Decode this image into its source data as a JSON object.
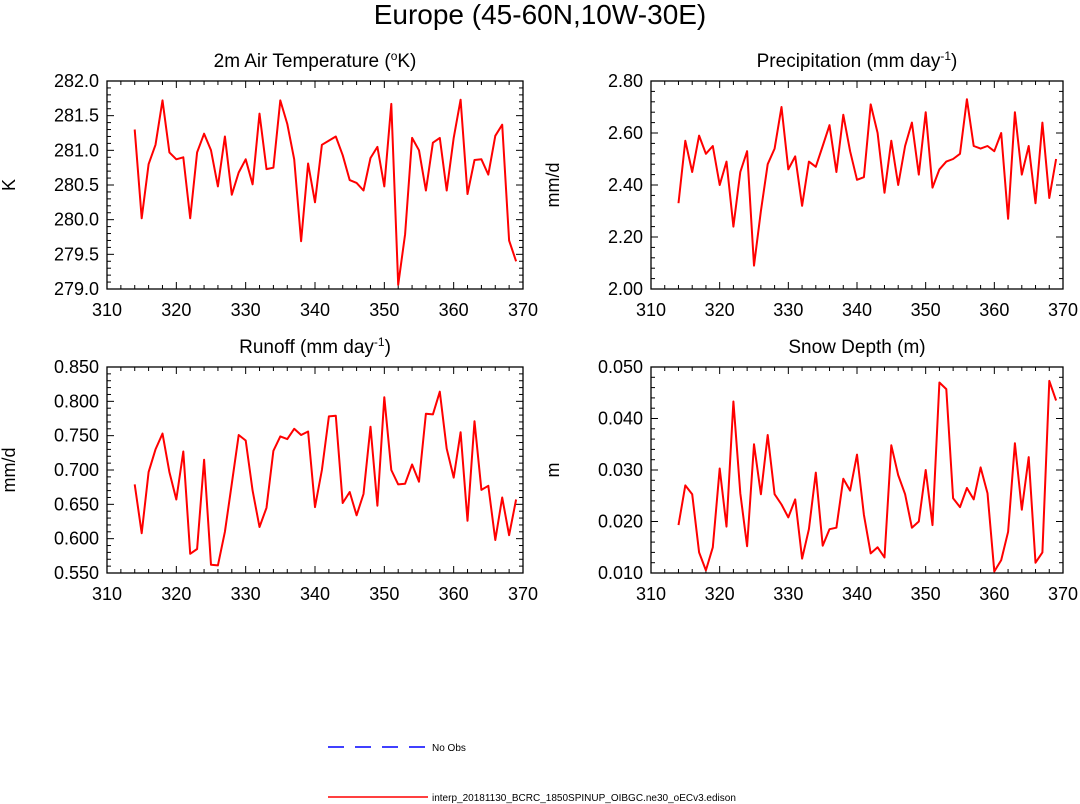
{
  "title": "Europe (45-60N,10W-30E)",
  "colors": {
    "model": "#ff0000",
    "obs": "#0000ff",
    "axis": "#000000"
  },
  "legend": {
    "position": "bottom-center",
    "obs_label": "No Obs",
    "model_label": "interp_20181130_BCRC_1850SPINUP_OIBGC.ne30_oECv3.edison"
  },
  "chart_data": [
    {
      "type": "line",
      "title_main": "2m Air Temperature (",
      "title_sup": "o",
      "title_end": "K)",
      "xlabel": "",
      "ylabel": "K",
      "xlim": [
        310,
        370
      ],
      "ylim": [
        279.0,
        282.0
      ],
      "xticks": [
        310,
        320,
        330,
        340,
        350,
        360,
        370
      ],
      "yticks": [
        279.0,
        279.5,
        280.0,
        280.5,
        281.0,
        281.5,
        282.0
      ],
      "ytick_labels": [
        "279.0",
        "279.5",
        "280.0",
        "280.5",
        "281.0",
        "281.5",
        "282.0"
      ],
      "x": [
        314,
        315,
        316,
        317,
        318,
        319,
        320,
        321,
        322,
        323,
        324,
        325,
        326,
        327,
        328,
        329,
        330,
        331,
        332,
        333,
        334,
        335,
        336,
        337,
        338,
        339,
        340,
        341,
        342,
        343,
        344,
        345,
        346,
        347,
        348,
        349,
        350,
        351,
        352,
        353,
        354,
        355,
        356,
        357,
        358,
        359,
        360,
        361,
        362,
        363,
        364,
        365,
        366,
        367,
        368,
        369
      ],
      "series": [
        {
          "name": "interp_20181130_BCRC_1850SPINUP_OIBGC.ne30_oECv3.edison",
          "values": [
            281.3,
            280.02,
            280.8,
            281.08,
            281.72,
            280.97,
            280.87,
            280.9,
            280.02,
            280.97,
            281.24,
            281.0,
            280.48,
            281.2,
            280.36,
            280.68,
            280.87,
            280.51,
            281.53,
            280.73,
            280.75,
            281.72,
            281.38,
            280.87,
            279.69,
            280.81,
            280.25,
            281.08,
            281.14,
            281.2,
            280.93,
            280.57,
            280.53,
            280.42,
            280.89,
            281.05,
            280.48,
            281.67,
            279.06,
            279.79,
            281.18,
            281.0,
            280.42,
            281.11,
            281.18,
            280.42,
            281.18,
            281.73,
            280.37,
            280.86,
            280.87,
            280.65,
            281.21,
            281.37,
            279.7,
            279.4
          ]
        }
      ]
    },
    {
      "type": "line",
      "title_main": "Precipitation (mm day",
      "title_sup": "-1",
      "title_end": ")",
      "xlabel": "",
      "ylabel": "mm/d",
      "xlim": [
        310,
        370
      ],
      "ylim": [
        2.0,
        2.8
      ],
      "xticks": [
        310,
        320,
        330,
        340,
        350,
        360,
        370
      ],
      "yticks": [
        2.0,
        2.2,
        2.4,
        2.6,
        2.8
      ],
      "ytick_labels": [
        "2.00",
        "2.20",
        "2.40",
        "2.60",
        "2.80"
      ],
      "x": [
        314,
        315,
        316,
        317,
        318,
        319,
        320,
        321,
        322,
        323,
        324,
        325,
        326,
        327,
        328,
        329,
        330,
        331,
        332,
        333,
        334,
        335,
        336,
        337,
        338,
        339,
        340,
        341,
        342,
        343,
        344,
        345,
        346,
        347,
        348,
        349,
        350,
        351,
        352,
        353,
        354,
        355,
        356,
        357,
        358,
        359,
        360,
        361,
        362,
        363,
        364,
        365,
        366,
        367,
        368,
        369
      ],
      "series": [
        {
          "name": "interp_20181130_BCRC_1850SPINUP_OIBGC.ne30_oECv3.edison",
          "values": [
            2.33,
            2.57,
            2.45,
            2.59,
            2.52,
            2.55,
            2.4,
            2.49,
            2.24,
            2.45,
            2.53,
            2.09,
            2.3,
            2.48,
            2.54,
            2.7,
            2.46,
            2.51,
            2.32,
            2.49,
            2.47,
            2.55,
            2.63,
            2.45,
            2.67,
            2.53,
            2.42,
            2.43,
            2.71,
            2.6,
            2.37,
            2.57,
            2.4,
            2.55,
            2.64,
            2.44,
            2.68,
            2.39,
            2.46,
            2.49,
            2.5,
            2.52,
            2.73,
            2.55,
            2.54,
            2.55,
            2.53,
            2.6,
            2.27,
            2.68,
            2.44,
            2.55,
            2.33,
            2.64,
            2.35,
            2.5
          ]
        }
      ]
    },
    {
      "type": "line",
      "title_main": "Runoff (mm day",
      "title_sup": "-1",
      "title_end": ")",
      "xlabel": "",
      "ylabel": "mm/d",
      "xlim": [
        310,
        370
      ],
      "ylim": [
        0.55,
        0.85
      ],
      "xticks": [
        310,
        320,
        330,
        340,
        350,
        360,
        370
      ],
      "yticks": [
        0.55,
        0.6,
        0.65,
        0.7,
        0.75,
        0.8,
        0.85
      ],
      "ytick_labels": [
        "0.550",
        "0.600",
        "0.650",
        "0.700",
        "0.750",
        "0.800",
        "0.850"
      ],
      "x": [
        314,
        315,
        316,
        317,
        318,
        319,
        320,
        321,
        322,
        323,
        324,
        325,
        326,
        327,
        328,
        329,
        330,
        331,
        332,
        333,
        334,
        335,
        336,
        337,
        338,
        339,
        340,
        341,
        342,
        343,
        344,
        345,
        346,
        347,
        348,
        349,
        350,
        351,
        352,
        353,
        354,
        355,
        356,
        357,
        358,
        359,
        360,
        361,
        362,
        363,
        364,
        365,
        366,
        367,
        368,
        369
      ],
      "series": [
        {
          "name": "interp_20181130_BCRC_1850SPINUP_OIBGC.ne30_oECv3.edison",
          "values": [
            0.679,
            0.608,
            0.697,
            0.73,
            0.753,
            0.697,
            0.657,
            0.727,
            0.578,
            0.585,
            0.715,
            0.562,
            0.561,
            0.61,
            0.68,
            0.751,
            0.743,
            0.67,
            0.617,
            0.645,
            0.728,
            0.749,
            0.745,
            0.76,
            0.751,
            0.756,
            0.646,
            0.7,
            0.778,
            0.779,
            0.652,
            0.668,
            0.634,
            0.665,
            0.763,
            0.648,
            0.806,
            0.7,
            0.679,
            0.68,
            0.708,
            0.683,
            0.782,
            0.781,
            0.814,
            0.731,
            0.689,
            0.755,
            0.626,
            0.771,
            0.671,
            0.677,
            0.598,
            0.66,
            0.605,
            0.657
          ]
        }
      ]
    },
    {
      "type": "line",
      "title_main": "Snow Depth (m)",
      "title_sup": "",
      "title_end": "",
      "xlabel": "",
      "ylabel": "m",
      "xlim": [
        310,
        370
      ],
      "ylim": [
        0.01,
        0.05
      ],
      "xticks": [
        310,
        320,
        330,
        340,
        350,
        360,
        370
      ],
      "yticks": [
        0.01,
        0.02,
        0.03,
        0.04,
        0.05
      ],
      "ytick_labels": [
        "0.010",
        "0.020",
        "0.030",
        "0.040",
        "0.050"
      ],
      "x": [
        314,
        315,
        316,
        317,
        318,
        319,
        320,
        321,
        322,
        323,
        324,
        325,
        326,
        327,
        328,
        329,
        330,
        331,
        332,
        333,
        334,
        335,
        336,
        337,
        338,
        339,
        340,
        341,
        342,
        343,
        344,
        345,
        346,
        347,
        348,
        349,
        350,
        351,
        352,
        353,
        354,
        355,
        356,
        357,
        358,
        359,
        360,
        361,
        362,
        363,
        364,
        365,
        366,
        367,
        368,
        369
      ],
      "series": [
        {
          "name": "interp_20181130_BCRC_1850SPINUP_OIBGC.ne30_oECv3.edison",
          "values": [
            0.0193,
            0.027,
            0.0253,
            0.014,
            0.0105,
            0.015,
            0.0303,
            0.019,
            0.0433,
            0.0255,
            0.0152,
            0.035,
            0.0253,
            0.0368,
            0.0253,
            0.0233,
            0.0208,
            0.0243,
            0.0128,
            0.0185,
            0.0295,
            0.0153,
            0.0185,
            0.0188,
            0.0283,
            0.026,
            0.033,
            0.0213,
            0.0138,
            0.015,
            0.013,
            0.0348,
            0.029,
            0.0253,
            0.0188,
            0.02,
            0.03,
            0.0193,
            0.047,
            0.0457,
            0.0245,
            0.0228,
            0.0265,
            0.0243,
            0.0305,
            0.0255,
            0.0103,
            0.0125,
            0.018,
            0.0352,
            0.0223,
            0.0325,
            0.012,
            0.014,
            0.0473,
            0.0435
          ]
        }
      ]
    }
  ]
}
